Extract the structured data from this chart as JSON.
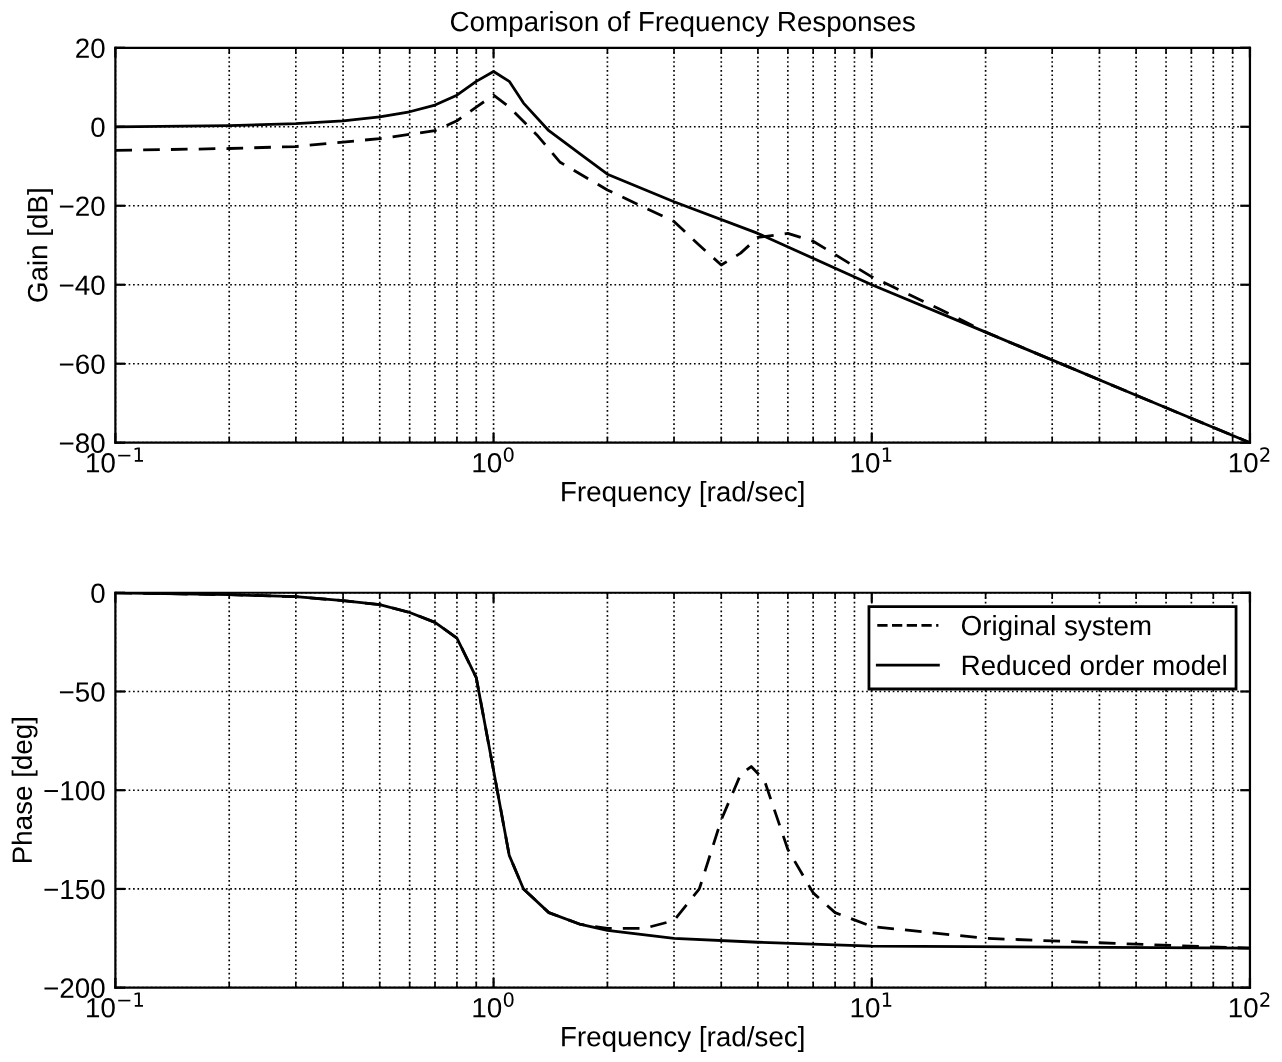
{
  "chart_data": [
    {
      "type": "line",
      "title": "Comparison of Frequency Responses",
      "xlabel": "Frequency [rad/sec]",
      "ylabel": "Gain [dB]",
      "log": "x",
      "grid": true,
      "xlim": [
        0.1,
        100
      ],
      "xticks": [
        {
          "value": 0.1,
          "label": "10$^{−1}$"
        },
        {
          "value": 1,
          "label": "10$^{0}$"
        },
        {
          "value": 10,
          "label": "10$^{1}$"
        },
        {
          "value": 100,
          "label": "10$^{2}$"
        }
      ],
      "ylim": [
        -80,
        20
      ],
      "yticks": [
        -80,
        -60,
        -40,
        -20,
        0,
        20
      ],
      "series": [
        {
          "color": "#000000",
          "line_style": "dashed",
          "x": [
            0.1,
            0.2,
            0.3,
            0.5,
            0.7,
            0.8,
            0.9,
            1.0,
            1.1,
            1.3,
            1.5,
            2,
            3,
            3.5,
            4,
            4.5,
            5,
            6,
            7,
            10,
            15,
            20,
            50,
            100
          ],
          "values": [
            -6,
            -5.5,
            -5,
            -3,
            -1,
            1.5,
            5,
            8,
            5,
            -2,
            -9,
            -16,
            -24,
            -30,
            -35,
            -32,
            -28,
            -27,
            -29,
            -38,
            -46,
            -52,
            -68,
            -80
          ]
        },
        {
          "color": "#000000",
          "line_style": "solid",
          "x": [
            0.1,
            0.2,
            0.3,
            0.4,
            0.5,
            0.6,
            0.7,
            0.8,
            0.9,
            1.0,
            1.1,
            1.2,
            1.4,
            1.7,
            2,
            3,
            5,
            10,
            20,
            50,
            100
          ],
          "values": [
            0,
            0.3,
            0.8,
            1.5,
            2.5,
            3.8,
            5.5,
            8,
            11.5,
            14,
            11.5,
            6,
            -1,
            -7,
            -12,
            -19,
            -27,
            -40,
            -52,
            -68,
            -80
          ]
        }
      ]
    },
    {
      "type": "line",
      "xlabel": "Frequency [rad/sec]",
      "ylabel": "Phase [deg]",
      "log": "x",
      "grid": true,
      "legend": "top right",
      "xlim": [
        0.1,
        100
      ],
      "xticks": [
        {
          "value": 0.1,
          "label": "10$^{−1}$"
        },
        {
          "value": 1,
          "label": "10$^{0}$"
        },
        {
          "value": 10,
          "label": "10$^{1}$"
        },
        {
          "value": 100,
          "label": "10$^{2}$"
        }
      ],
      "ylim": [
        -200,
        0
      ],
      "yticks": [
        -200,
        -150,
        -100,
        -50,
        0
      ],
      "series": [
        {
          "name": "Original system",
          "color": "#000000",
          "line_style": "dashed",
          "x": [
            0.1,
            0.2,
            0.3,
            0.4,
            0.5,
            0.6,
            0.7,
            0.8,
            0.9,
            1.0,
            1.1,
            1.2,
            1.4,
            1.7,
            2,
            2.5,
            3,
            3.5,
            4,
            4.5,
            4.8,
            5.2,
            6,
            7,
            8,
            10,
            20,
            50,
            100
          ],
          "values": [
            0,
            -1,
            -2,
            -4,
            -6,
            -10,
            -15,
            -23,
            -43,
            -90,
            -133,
            -150,
            -162,
            -168,
            -170,
            -170,
            -166,
            -150,
            -115,
            -92,
            -88,
            -95,
            -130,
            -152,
            -162,
            -169,
            -175,
            -178,
            -180
          ]
        },
        {
          "name": "Reduced order model",
          "color": "#000000",
          "line_style": "solid",
          "x": [
            0.1,
            0.2,
            0.3,
            0.4,
            0.5,
            0.6,
            0.7,
            0.8,
            0.9,
            1.0,
            1.1,
            1.2,
            1.4,
            1.7,
            2,
            3,
            5,
            10,
            100
          ],
          "values": [
            0,
            -1,
            -2,
            -4,
            -6,
            -10,
            -15,
            -23,
            -43,
            -90,
            -133,
            -150,
            -162,
            -168,
            -171,
            -175,
            -177,
            -179,
            -180
          ]
        }
      ]
    }
  ]
}
